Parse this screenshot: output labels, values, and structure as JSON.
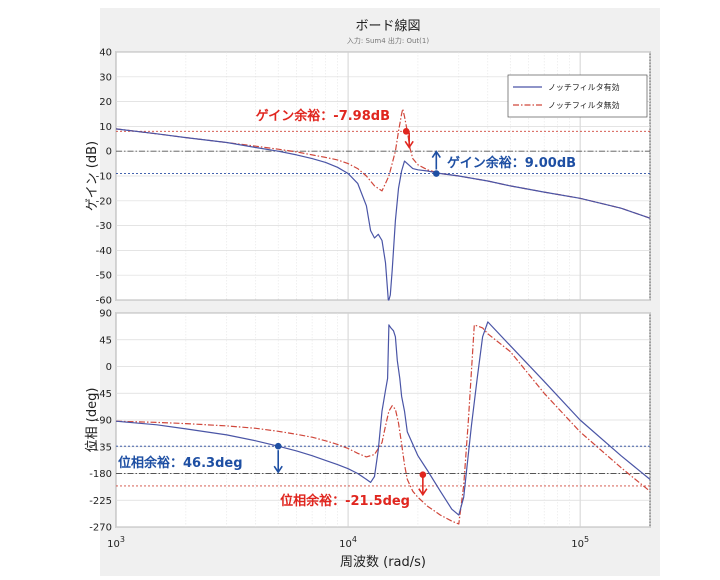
{
  "chart_data": {
    "type": "line",
    "title": "ボード線図",
    "subtitle": "入力: Sum4  出力: Out(1)",
    "xlabel": "周波数 (rad/s)",
    "x_scale": "log",
    "xlim": [
      1000,
      200000
    ],
    "x_ticks": [
      {
        "value": 1000,
        "base": "10",
        "exp": "3"
      },
      {
        "value": 10000,
        "base": "10",
        "exp": "4"
      },
      {
        "value": 100000,
        "base": "10",
        "exp": "5"
      }
    ],
    "grid": true,
    "legend": {
      "placement": "top-right",
      "entries": [
        {
          "name": "ノッチフィルタ有効",
          "color": "#4a55a6",
          "style": "solid"
        },
        {
          "name": "ノッチフィルタ無効",
          "color": "#d0473b",
          "style": "dashdot"
        }
      ]
    },
    "magnitude": {
      "ylabel": "ゲイン (dB)",
      "ylim": [
        -60,
        40
      ],
      "yticks": [
        "-60",
        "-50",
        "-40",
        "-30",
        "-20",
        "-10",
        "0",
        "10",
        "20",
        "30",
        "40"
      ],
      "series": [
        {
          "name": "ノッチフィルタ有効",
          "color": "#4a55a6",
          "style": "solid",
          "x": [
            1000,
            1500,
            2000,
            3000,
            4000,
            5000,
            6000,
            7000,
            8000,
            9000,
            10000,
            11000,
            12000,
            12500,
            13000,
            13500,
            14000,
            14500,
            14900,
            15000,
            15200,
            15500,
            16000,
            16500,
            17000,
            17500,
            18000,
            19000,
            20000,
            22000,
            25000,
            30000,
            40000,
            50000,
            70000,
            100000,
            150000,
            200000
          ],
          "y": [
            9,
            7,
            5.5,
            3.5,
            1.5,
            0,
            -1.5,
            -3,
            -4.5,
            -6.5,
            -9,
            -13,
            -22,
            -32,
            -35,
            -33.5,
            -36,
            -45,
            -60,
            -60,
            -58,
            -48,
            -28,
            -15,
            -8,
            -4,
            -5,
            -7,
            -7.5,
            -8,
            -9,
            -10,
            -12,
            -14,
            -16.5,
            -19,
            -23,
            -27
          ]
        },
        {
          "name": "ノッチフィルタ無効",
          "color": "#d0473b",
          "style": "dashdot",
          "x": [
            1000,
            1500,
            2000,
            3000,
            4000,
            5000,
            6000,
            7000,
            8000,
            9000,
            10000,
            11000,
            12000,
            13000,
            14000,
            15000,
            16000,
            16500,
            17000,
            17200,
            17500,
            18000,
            18500,
            19000,
            20000,
            22000,
            25000,
            30000,
            40000,
            50000,
            70000,
            100000,
            150000,
            200000
          ],
          "y": [
            9,
            7,
            5.5,
            3.5,
            2,
            0.8,
            -0.3,
            -1.5,
            -2.5,
            -3.5,
            -5,
            -7,
            -10,
            -14,
            -16,
            -10,
            0,
            8,
            15,
            17,
            14,
            8,
            1,
            -3,
            -5.5,
            -7.5,
            -9,
            -10,
            -12,
            -14,
            -16.5,
            -19,
            -23,
            -27
          ]
        }
      ],
      "reference_lines": [
        {
          "y": 0,
          "color": "#555555",
          "style": "dashdot"
        },
        {
          "y": 8,
          "color": "#d0473b",
          "style": "dotted"
        },
        {
          "y": -9,
          "color": "#2b4ea2",
          "style": "dotted"
        }
      ],
      "annotations": [
        {
          "text": "ゲイン余裕：-7.98dB",
          "color": "#e0261f",
          "marker_x": 17800,
          "marker_y": 8,
          "arrow": "down"
        },
        {
          "text": "ゲイン余裕：9.00dB",
          "color": "#1e4fa3",
          "marker_x": 24000,
          "marker_y": -9,
          "arrow": "up"
        }
      ]
    },
    "phase": {
      "ylabel": "位相 (deg)",
      "ylim": [
        -270,
        90
      ],
      "yticks": [
        "-270",
        "-225",
        "-180",
        "-135",
        "-90",
        "-45",
        "0",
        "45",
        "90"
      ],
      "series": [
        {
          "name": "ノッチフィルタ有効",
          "color": "#4a55a6",
          "style": "solid",
          "x": [
            1000,
            1500,
            2000,
            3000,
            4000,
            5000,
            6000,
            7000,
            8000,
            9000,
            10000,
            11000,
            12000,
            12500,
            13000,
            13500,
            14000,
            14500,
            14800,
            15000,
            15300,
            15700,
            16000,
            16300,
            16700,
            17000,
            17500,
            18000,
            20000,
            22000,
            25000,
            28000,
            30000,
            31500,
            32500,
            34000,
            36000,
            38000,
            40000,
            50000,
            70000,
            100000,
            150000,
            200000
          ],
          "y": [
            -92,
            -98,
            -105,
            -115,
            -125,
            -134,
            -142,
            -150,
            -158,
            -165,
            -172,
            -180,
            -190,
            -195,
            -185,
            -140,
            -75,
            -40,
            -20,
            70,
            65,
            60,
            50,
            10,
            -20,
            -50,
            -75,
            -110,
            -150,
            -175,
            -210,
            -240,
            -250,
            -220,
            -170,
            -100,
            -20,
            50,
            75,
            35,
            -25,
            -90,
            -150,
            -190
          ]
        },
        {
          "name": "ノッチフィルタ無効",
          "color": "#d0473b",
          "style": "dashdot",
          "x": [
            1000,
            1500,
            2000,
            3000,
            4000,
            5000,
            6000,
            7000,
            8000,
            9000,
            10000,
            11000,
            12000,
            13000,
            14000,
            14500,
            15000,
            15500,
            16000,
            16500,
            17000,
            17500,
            18000,
            19000,
            20000,
            22000,
            25000,
            28000,
            30000,
            31500,
            33000,
            35000,
            38000,
            40000,
            50000,
            70000,
            100000,
            150000,
            200000
          ],
          "y": [
            -92,
            -94,
            -96,
            -100,
            -104,
            -109,
            -114,
            -119,
            -125,
            -131,
            -138,
            -146,
            -152,
            -148,
            -128,
            -100,
            -75,
            -66,
            -72,
            -95,
            -130,
            -165,
            -190,
            -210,
            -220,
            -235,
            -250,
            -260,
            -265,
            -200,
            -90,
            70,
            65,
            55,
            25,
            -45,
            -110,
            -170,
            -210
          ]
        }
      ],
      "reference_lines": [
        {
          "y": -180,
          "color": "#555555",
          "style": "dashdot"
        },
        {
          "y": -134,
          "color": "#2b4ea2",
          "style": "dotted"
        },
        {
          "y": -201,
          "color": "#d0473b",
          "style": "dotted"
        }
      ],
      "annotations": [
        {
          "text": "位相余裕：46.3deg",
          "color": "#1e4fa3",
          "marker_x": 5000,
          "marker_y": -134,
          "arrow": "up"
        },
        {
          "text": "位相余裕：-21.5deg",
          "color": "#e0261f",
          "marker_x": 21000,
          "marker_y": -182,
          "arrow": "down"
        }
      ]
    }
  }
}
